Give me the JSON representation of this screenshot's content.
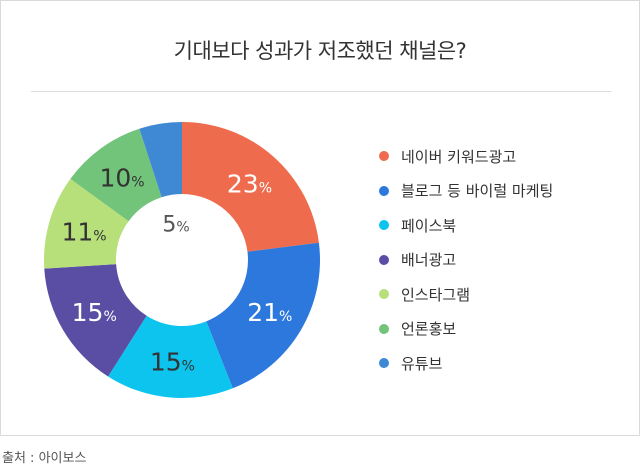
{
  "title": "기대보다 성과가 저조했던 채널은?",
  "source": "출처 : 아이보스",
  "chart_data": {
    "type": "donut",
    "title": "기대보다 성과가 저조했던 채널은?",
    "unit": "%",
    "legend_position": "right",
    "categories": [
      "네이버 키워드광고",
      "블로그 등 바이럴 마케팅",
      "페이스북",
      "배너광고",
      "인스타그램",
      "언론홍보",
      "유튜브"
    ],
    "values": [
      23,
      21,
      15,
      15,
      11,
      10,
      5
    ],
    "colors": [
      "#ee6b4d",
      "#2c78dc",
      "#0cc4ee",
      "#5a4ea4",
      "#b7e07a",
      "#72c47a",
      "#3e88d4"
    ],
    "label_colors": [
      "#ffffff",
      "#ffffff",
      "#333333",
      "#ffffff",
      "#333333",
      "#333333",
      "#555555"
    ],
    "labels": [
      "23%",
      "21%",
      "15%",
      "15%",
      "11%",
      "10%",
      "5%"
    ]
  }
}
